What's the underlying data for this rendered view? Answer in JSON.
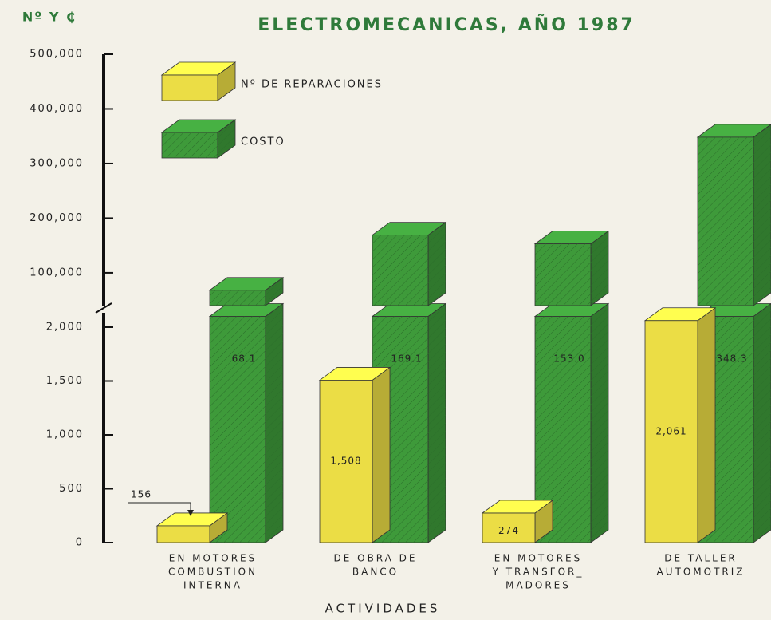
{
  "chart_data": {
    "type": "bar",
    "title": "ELECTROMECANICAS, AÑO 1987",
    "y_label": "Nº Y ₵",
    "x_label": "ACTIVIDADES",
    "categories": [
      [
        "EN MOTORES",
        "COMBUSTION",
        "INTERNA"
      ],
      [
        "DE OBRA DE",
        "BANCO"
      ],
      [
        "EN MOTORES",
        "Y TRANSFOR_",
        "MADORES"
      ],
      [
        "DE TALLER",
        "AUTOMOTRIZ"
      ]
    ],
    "series": [
      {
        "name": "Nº DE REPARACIONES",
        "color": "#ebdd45",
        "values": [
          156,
          1508,
          274,
          2061
        ],
        "value_labels": [
          "156",
          "1,508",
          "274",
          "2,061"
        ]
      },
      {
        "name": "COSTO",
        "color": "#3e9a3a",
        "axis": "y2",
        "values": [
          68100,
          169100,
          153000,
          348300
        ],
        "value_labels": [
          "68.1",
          "169.1",
          "153.0",
          "348.3"
        ]
      }
    ],
    "ylim": [
      0,
      2100
    ],
    "yticks": [
      0,
      500,
      {
        "value": 1000,
        "label": "1,000"
      },
      {
        "value": 1500,
        "label": "1,500"
      },
      {
        "value": 2000,
        "label": "2,000"
      }
    ],
    "y2lim": [
      40000,
      500000
    ],
    "y2ticks": [
      {
        "value": 100000,
        "label": "100,000"
      },
      {
        "value": 200000,
        "label": "200,000"
      },
      {
        "value": 300000,
        "label": "300,000"
      },
      {
        "value": 400000,
        "label": "400,000"
      },
      {
        "value": 500000,
        "label": "500,000"
      }
    ],
    "broken_axis": true
  }
}
